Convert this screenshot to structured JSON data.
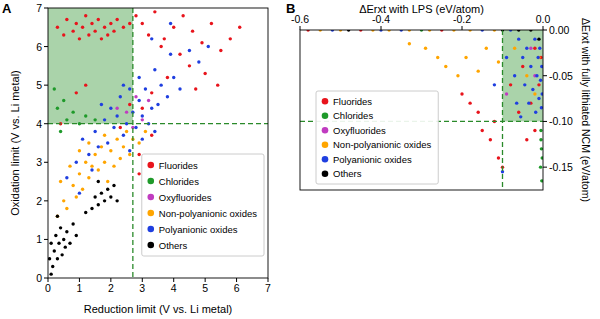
{
  "chart_data": [
    {
      "type": "scatter",
      "title": "A",
      "xlabel": "Reduction limit (V vs. Li metal)",
      "ylabel": "Oxidation limit (V vs. Li metal)",
      "xlim": [
        0,
        7
      ],
      "ylim": [
        0,
        7
      ],
      "xticks": [
        0,
        1,
        2,
        3,
        4,
        5,
        6,
        7
      ],
      "yticks": [
        0,
        1,
        2,
        3,
        4,
        5,
        6,
        7
      ],
      "grid": false,
      "legend": "lower right",
      "marker": "circle",
      "thresholds": {
        "x": 2.7,
        "y": 4
      },
      "region": {
        "x": [
          0,
          2.7
        ],
        "y": [
          4,
          7
        ]
      },
      "series": [
        {
          "name": "Fluorides",
          "color": "#e8141c",
          "x": [
            0.3,
            0.5,
            0.6,
            0.8,
            0.9,
            1.0,
            1.1,
            1.2,
            1.3,
            1.4,
            1.5,
            1.6,
            1.7,
            1.8,
            1.9,
            2.0,
            2.1,
            2.2,
            2.4,
            2.6,
            2.8,
            3.0,
            3.2,
            3.4,
            3.7,
            4.0,
            4.3,
            4.6,
            4.9,
            5.2,
            5.5,
            5.8,
            6.1,
            4.5,
            4.2,
            5.0,
            3.8,
            3.3,
            3.0,
            4.7,
            5.4,
            3.3,
            2.9,
            2.9,
            0.9,
            1.2,
            0.4,
            2.3,
            2.6,
            3.6
          ],
          "y": [
            6.5,
            6.3,
            6.7,
            6.4,
            6.6,
            6.2,
            6.5,
            6.8,
            6.3,
            6.6,
            6.4,
            6.7,
            6.2,
            6.5,
            6.3,
            6.6,
            6.4,
            6.7,
            6.5,
            6.6,
            6.8,
            6.6,
            6.3,
            6.9,
            6.2,
            6.5,
            6.8,
            6.4,
            6.1,
            6.6,
            5.9,
            6.2,
            6.5,
            5.5,
            5.8,
            5.3,
            5.2,
            4.8,
            4.4,
            4.9,
            5.0,
            3.7,
            3.2,
            2.7,
            4.8,
            5.0,
            4.0,
            3.9,
            4.5,
            6.0
          ]
        },
        {
          "name": "Chlorides",
          "color": "#1f9a2a",
          "x": [
            0.2,
            0.3,
            0.5,
            0.6,
            0.8,
            1.0,
            0.4,
            1.2,
            1.5
          ],
          "y": [
            4.9,
            4.4,
            4.6,
            4.1,
            4.3,
            4.0,
            3.8,
            4.2,
            4.1
          ]
        },
        {
          "name": "Oxyfluorides",
          "color": "#c03cc0",
          "x": [
            2.5,
            2.8,
            3.0,
            2.7,
            3.2,
            2.2
          ],
          "y": [
            4.3,
            4.7,
            4.1,
            3.9,
            4.6,
            4.4
          ]
        },
        {
          "name": "Non-polyanionic oxides",
          "color": "#ffa500",
          "x": [
            0.3,
            0.5,
            0.6,
            0.8,
            0.9,
            1.0,
            1.1,
            1.2,
            1.3,
            1.4,
            1.5,
            1.6,
            1.7,
            1.8,
            1.9,
            2.0,
            2.1,
            2.2,
            2.3,
            2.4,
            2.5,
            2.6,
            2.7,
            0.7,
            1.0,
            1.3,
            1.8,
            2.9,
            3.1,
            0.4
          ],
          "y": [
            1.6,
            2.0,
            1.8,
            2.4,
            2.1,
            2.7,
            2.3,
            3.0,
            2.6,
            2.9,
            3.2,
            2.8,
            3.4,
            3.0,
            2.5,
            3.3,
            2.9,
            3.6,
            3.1,
            3.4,
            3.8,
            3.2,
            3.6,
            2.9,
            3.3,
            3.5,
            3.7,
            3.5,
            3.8,
            2.5
          ]
        },
        {
          "name": "Polyanionic oxides",
          "color": "#1f3fe0",
          "x": [
            0.6,
            0.9,
            1.1,
            1.3,
            1.5,
            1.6,
            1.8,
            1.9,
            2.0,
            2.1,
            2.2,
            2.3,
            2.4,
            2.5,
            2.6,
            2.7,
            2.8,
            2.9,
            3.0,
            3.0,
            3.1,
            3.2,
            3.3,
            3.4,
            3.5,
            3.6,
            3.4,
            3.8,
            4.0,
            4.2,
            4.5,
            4.8,
            5.1,
            3.9,
            2.9,
            2.4,
            1.7,
            1.4,
            1.0,
            2.6,
            3.3,
            3.9
          ],
          "y": [
            2.6,
            3.0,
            3.6,
            3.2,
            3.8,
            3.4,
            4.1,
            3.5,
            4.4,
            3.9,
            4.2,
            4.7,
            3.7,
            4.0,
            4.9,
            4.3,
            3.9,
            4.6,
            4.2,
            3.6,
            4.9,
            4.0,
            4.4,
            3.8,
            4.5,
            5.0,
            5.4,
            4.7,
            5.2,
            4.9,
            5.9,
            5.6,
            6.0,
            5.8,
            5.2,
            5.0,
            4.5,
            2.8,
            2.2,
            3.3,
            6.2,
            6.6
          ]
        },
        {
          "name": "Others",
          "color": "#000000",
          "x": [
            0.05,
            0.1,
            0.15,
            0.2,
            0.25,
            0.3,
            0.35,
            0.4,
            0.45,
            0.5,
            0.55,
            0.6,
            0.7,
            0.8,
            0.9,
            0.3,
            1.4,
            1.5,
            1.6,
            1.7,
            1.8,
            1.9,
            2.0,
            2.1,
            1.6,
            1.2,
            2.2,
            0.1
          ],
          "y": [
            0.5,
            0.9,
            0.3,
            0.7,
            1.1,
            0.5,
            0.9,
            1.3,
            0.6,
            1.0,
            0.8,
            1.2,
            0.9,
            1.4,
            1.1,
            1.6,
            1.8,
            2.1,
            1.9,
            2.2,
            2.0,
            2.3,
            2.1,
            2.4,
            2.5,
            1.7,
            2.0,
            0.1
          ]
        }
      ]
    },
    {
      "type": "scatter",
      "title": "B",
      "xlabel": "ΔErxt with LPS (eV/atom)",
      "ylabel": "ΔErxt with fully lithiated NCM (eV/atom)",
      "xlim": [
        -0.6,
        0
      ],
      "ylim": [
        -0.175,
        0
      ],
      "xticks": [
        -0.6,
        -0.4,
        -0.2,
        {
          "value": 0,
          "label": "0.0"
        }
      ],
      "yticks": [
        {
          "value": 0,
          "label": "0.00"
        },
        -0.05,
        {
          "value": -0.1,
          "label": "-0.10"
        },
        {
          "value": -0.15,
          "label": "-0.15"
        }
      ],
      "grid": false,
      "legend": "lower left",
      "marker": "circle",
      "thresholds": {
        "x": -0.1,
        "y": -0.1
      },
      "region": {
        "x": [
          -0.1,
          0
        ],
        "y": [
          -0.1,
          0
        ]
      },
      "series": [
        {
          "name": "Fluorides",
          "color": "#e8141c",
          "x": [
            -0.58,
            -0.45,
            -0.25,
            -0.2,
            -0.18,
            -0.16,
            -0.15,
            -0.13,
            -0.12,
            -0.11,
            -0.1,
            -0.08,
            -0.05,
            -0.03,
            -0.02,
            -0.01,
            -0.005,
            -0.04,
            -0.06,
            -0.02
          ],
          "y": [
            0,
            0,
            0,
            -0.07,
            -0.08,
            -0.09,
            -0.11,
            -0.12,
            -0.1,
            -0.14,
            -0.15,
            -0.06,
            -0.04,
            -0.08,
            -0.02,
            -0.06,
            -0.03,
            -0.12,
            -0.09,
            -0.11
          ]
        },
        {
          "name": "Chlorides",
          "color": "#1f9a2a",
          "x": [
            -0.005,
            -0.004,
            -0.006,
            -0.003,
            -0.005,
            -0.3,
            -0.002
          ],
          "y": [
            -0.11,
            -0.13,
            -0.15,
            -0.165,
            -0.12,
            0,
            -0.14
          ]
        },
        {
          "name": "Oxyfluorides",
          "color": "#c03cc0",
          "x": [
            -0.03,
            -0.02,
            -0.09
          ],
          "y": [
            -0.02,
            -0.05,
            -0.07
          ]
        },
        {
          "name": "Non-polyanionic oxides",
          "color": "#ffa500",
          "x": [
            -0.55,
            -0.5,
            -0.42,
            -0.38,
            -0.33,
            -0.28,
            -0.22,
            -0.18,
            -0.12,
            -0.29,
            -0.26,
            -0.24,
            -0.21,
            -0.19,
            -0.16,
            -0.14,
            -0.11,
            -0.07,
            -0.04,
            -0.02,
            -0.01,
            -0.33
          ],
          "y": [
            0,
            0,
            0,
            0,
            0,
            0,
            0,
            0,
            0,
            -0.02,
            -0.03,
            -0.04,
            -0.05,
            -0.03,
            -0.045,
            -0.02,
            -0.035,
            -0.02,
            -0.05,
            -0.07,
            -0.03,
            -0.015
          ]
        },
        {
          "name": "Polyanionic oxides",
          "color": "#1f3fe0",
          "x": [
            -0.52,
            -0.4,
            -0.35,
            -0.15,
            -0.08,
            -0.06,
            -0.05,
            -0.045,
            -0.04,
            -0.035,
            -0.03,
            -0.025,
            -0.02,
            -0.018,
            -0.015,
            -0.012,
            -0.01,
            -0.008,
            -0.006,
            -0.004,
            -0.003,
            -0.002,
            -0.07,
            -0.09,
            -0.1,
            -0.12,
            -0.055,
            -0.065
          ],
          "y": [
            0,
            0,
            0,
            0,
            0,
            -0.01,
            -0.03,
            -0.06,
            -0.02,
            -0.08,
            -0.04,
            -0.065,
            -0.01,
            -0.09,
            -0.05,
            -0.03,
            -0.075,
            -0.02,
            -0.055,
            -0.085,
            -0.04,
            -0.07,
            -0.05,
            -0.03,
            -0.155,
            -0.06,
            -0.095,
            -0.08
          ]
        },
        {
          "name": "Others",
          "color": "#000000",
          "x": [
            -0.48,
            -0.1,
            -0.06,
            -0.03,
            -0.01
          ],
          "y": [
            0,
            0,
            0,
            0,
            -0.01
          ]
        }
      ]
    }
  ]
}
